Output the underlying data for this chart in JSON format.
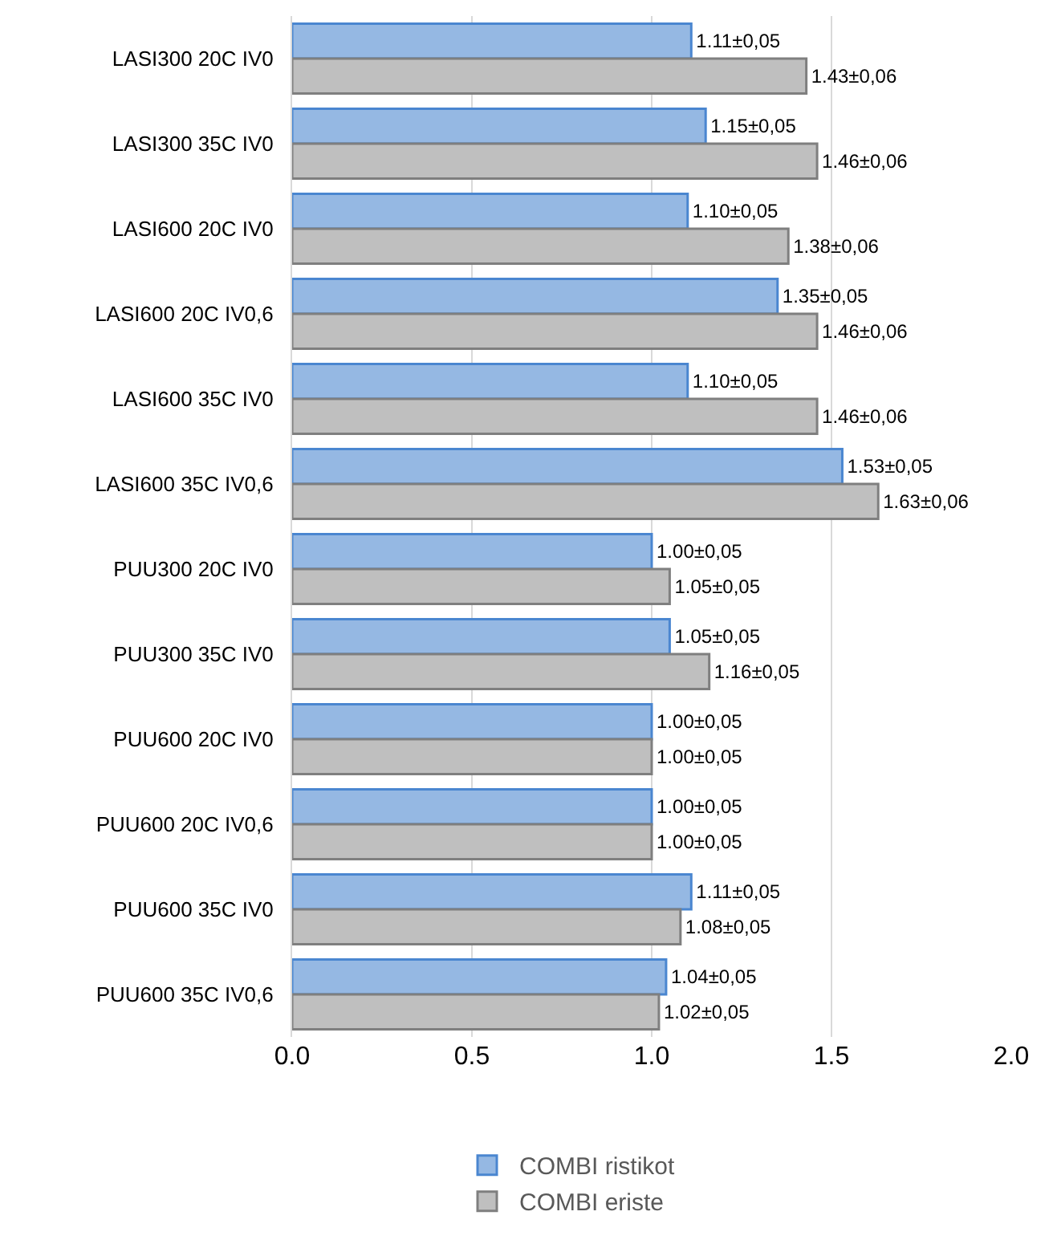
{
  "chart_data": {
    "type": "bar",
    "orientation": "horizontal",
    "categories": [
      "LASI300 20C IV0",
      "LASI300 35C IV0",
      "LASI600 20C IV0",
      "LASI600 20C IV0,6",
      "LASI600 35C IV0",
      "LASI600 35C IV0,6",
      "PUU300 20C IV0",
      "PUU300 35C IV0",
      "PUU600 20C IV0",
      "PUU600 20C IV0,6",
      "PUU600 35C IV0",
      "PUU600 35C IV0,6"
    ],
    "series": [
      {
        "name": "COMBI ristikot",
        "color": "#95b8e3",
        "values": [
          1.11,
          1.15,
          1.1,
          1.35,
          1.1,
          1.53,
          1.0,
          1.05,
          1.0,
          1.0,
          1.11,
          1.04
        ],
        "value_labels": [
          "1.11±0,05",
          "1.15±0,05",
          "1.10±0,05",
          "1.35±0,05",
          "1.10±0,05",
          "1.53±0,05",
          "1.00±0,05",
          "1.05±0,05",
          "1.00±0,05",
          "1.00±0,05",
          "1.11±0,05",
          "1.04±0,05"
        ]
      },
      {
        "name": "COMBI eriste",
        "color": "#bfbfbf",
        "values": [
          1.43,
          1.46,
          1.38,
          1.46,
          1.46,
          1.63,
          1.05,
          1.16,
          1.0,
          1.0,
          1.08,
          1.02
        ],
        "value_labels": [
          "1.43±0,06",
          "1.46±0,06",
          "1.38±0,06",
          "1.46±0,06",
          "1.46±0,06",
          "1.63±0,06",
          "1.05±0,05",
          "1.16±0,05",
          "1.00±0,05",
          "1.00±0,05",
          "1.08±0,05",
          "1.02±0,05"
        ]
      }
    ],
    "xlim": [
      0,
      2
    ],
    "xticks": [
      {
        "value": 0,
        "label": "0.0"
      },
      {
        "value": 0.5,
        "label": "0.5"
      },
      {
        "value": 1,
        "label": "1.0"
      },
      {
        "value": 1.5,
        "label": "1.5"
      },
      {
        "value": 2,
        "label": "2.0"
      }
    ],
    "grid": "x",
    "legend": "bottom"
  }
}
